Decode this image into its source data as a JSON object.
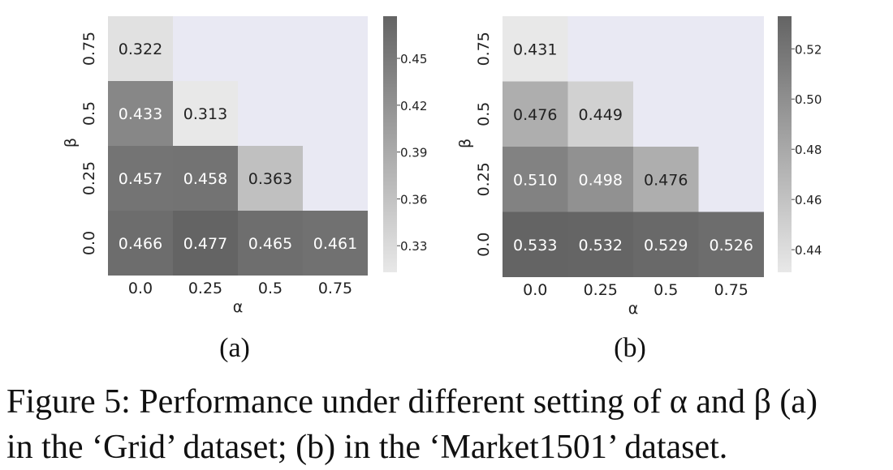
{
  "chart_data": [
    {
      "type": "heatmap",
      "panel_label": "(a)",
      "xlabel": "α",
      "ylabel": "β",
      "x_categories": [
        "0.0",
        "0.25",
        "0.5",
        "0.75"
      ],
      "y_categories": [
        "0.75",
        "0.5",
        "0.25",
        "0.0"
      ],
      "values": [
        [
          0.322,
          null,
          null,
          null
        ],
        [
          0.433,
          0.313,
          null,
          null
        ],
        [
          0.457,
          0.458,
          0.363,
          null
        ],
        [
          0.466,
          0.477,
          0.465,
          0.461
        ]
      ],
      "colorbar": {
        "min": 0.313,
        "max": 0.477,
        "ticks": [
          "0.45",
          "0.42",
          "0.39",
          "0.36",
          "0.33"
        ]
      },
      "missing_color": "#e9e9f3",
      "colormap": "greys"
    },
    {
      "type": "heatmap",
      "panel_label": "(b)",
      "xlabel": "α",
      "ylabel": "β",
      "x_categories": [
        "0.0",
        "0.25",
        "0.5",
        "0.75"
      ],
      "y_categories": [
        "0.75",
        "0.5",
        "0.25",
        "0.0"
      ],
      "values": [
        [
          0.431,
          null,
          null,
          null
        ],
        [
          0.476,
          0.449,
          null,
          null
        ],
        [
          0.51,
          0.498,
          0.476,
          null
        ],
        [
          0.533,
          0.532,
          0.529,
          0.526
        ]
      ],
      "colorbar": {
        "min": 0.431,
        "max": 0.533,
        "ticks": [
          "0.52",
          "0.50",
          "0.48",
          "0.46",
          "0.44"
        ]
      },
      "missing_color": "#e9e9f3",
      "colormap": "greys"
    }
  ],
  "caption": {
    "line1": "Figure 5: Performance under different setting of α and β (a)",
    "line2": "in the ‘Grid’ dataset; (b) in the ‘Market1501’ dataset."
  }
}
